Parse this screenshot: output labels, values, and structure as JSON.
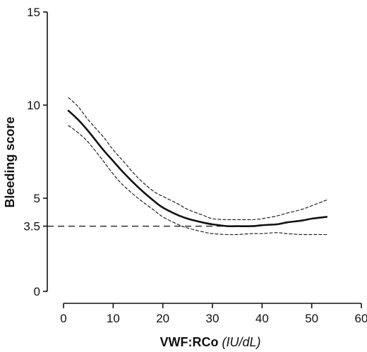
{
  "chart_data": {
    "type": "line",
    "xlabel": "VWF:RCo",
    "xlabel_unit": "(IU/dL)",
    "ylabel": "Bleeding score",
    "xlim": [
      0,
      60
    ],
    "ylim": [
      0,
      15
    ],
    "x_ticks": [
      0,
      10,
      20,
      30,
      40,
      50,
      60
    ],
    "y_ticks": [
      0,
      3.5,
      5,
      10,
      15
    ],
    "grid": false,
    "legend": "none",
    "reference_lines": [
      {
        "axis": "y",
        "value": 3.5,
        "style": "dashed"
      }
    ],
    "series": [
      {
        "role": "fit",
        "style": "solid",
        "x": [
          1,
          3,
          5,
          8,
          10,
          12,
          15,
          18,
          20,
          23,
          25,
          28,
          30,
          33,
          35,
          38,
          40,
          43,
          45,
          48,
          50,
          53
        ],
        "y": [
          9.7,
          9.2,
          8.6,
          7.6,
          7.0,
          6.4,
          5.6,
          4.9,
          4.5,
          4.1,
          3.9,
          3.7,
          3.6,
          3.5,
          3.5,
          3.5,
          3.55,
          3.6,
          3.7,
          3.8,
          3.9,
          4.0
        ]
      },
      {
        "role": "upper-ci",
        "style": "dashed",
        "x": [
          1,
          3,
          5,
          8,
          10,
          12,
          15,
          18,
          20,
          23,
          25,
          28,
          30,
          33,
          35,
          38,
          40,
          43,
          45,
          48,
          50,
          53
        ],
        "y": [
          10.4,
          9.9,
          9.2,
          8.3,
          7.6,
          7.0,
          6.1,
          5.4,
          5.1,
          4.7,
          4.4,
          4.1,
          3.9,
          3.85,
          3.85,
          3.85,
          3.9,
          4.05,
          4.2,
          4.4,
          4.6,
          4.9
        ]
      },
      {
        "role": "lower-ci",
        "style": "dashed",
        "x": [
          1,
          3,
          5,
          8,
          10,
          12,
          15,
          18,
          20,
          23,
          25,
          28,
          30,
          33,
          35,
          38,
          40,
          43,
          45,
          48,
          50,
          53
        ],
        "y": [
          8.9,
          8.5,
          8.0,
          7.0,
          6.3,
          5.7,
          5.0,
          4.4,
          4.0,
          3.6,
          3.4,
          3.2,
          3.1,
          3.05,
          3.05,
          3.1,
          3.1,
          3.15,
          3.1,
          3.05,
          3.05,
          3.05
        ]
      }
    ]
  }
}
